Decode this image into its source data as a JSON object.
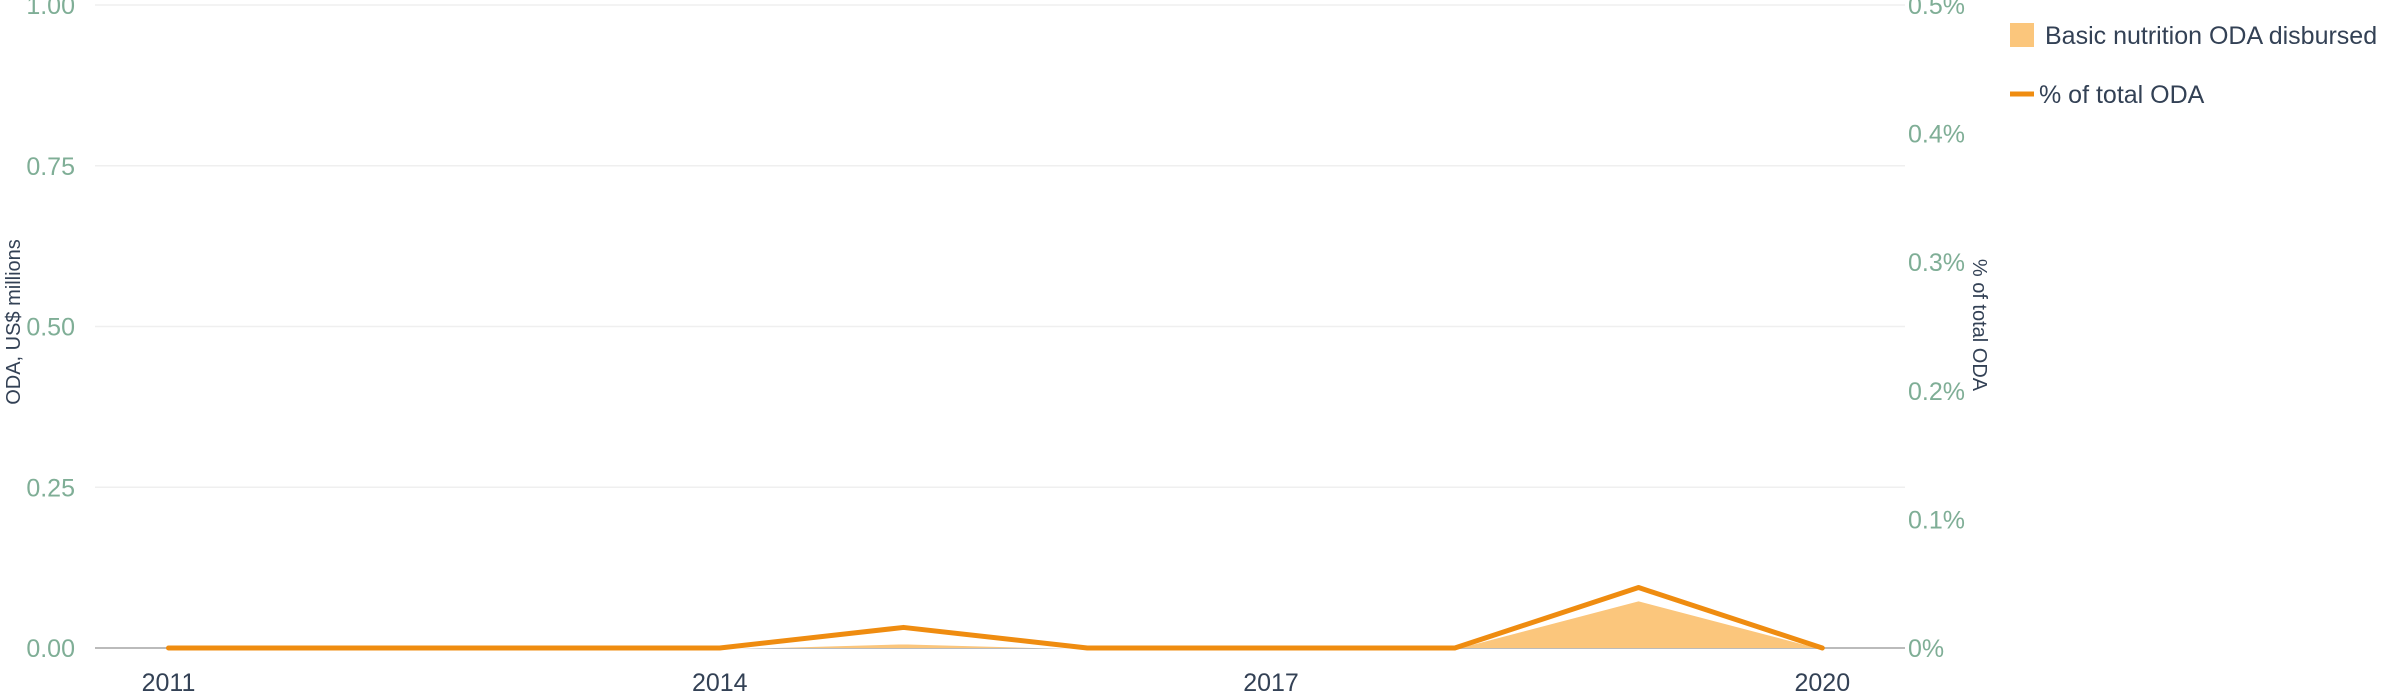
{
  "chart_data": {
    "type": "area",
    "x": [
      2011,
      2012,
      2013,
      2014,
      2015,
      2016,
      2017,
      2018,
      2019,
      2020
    ],
    "x_ticks": [
      "2011",
      "2014",
      "2017",
      "2020"
    ],
    "xlim": [
      2010.6,
      2020.45
    ],
    "y_left": {
      "label": "ODA, US$ millions",
      "range": [
        0,
        1
      ],
      "ticks": [
        "0.00",
        "0.25",
        "0.50",
        "0.75",
        "1.00"
      ]
    },
    "y_right": {
      "label": "% of total ODA",
      "range": [
        0,
        0.5
      ],
      "ticks": [
        "0%",
        "0.1%",
        "0.2%",
        "0.3%",
        "0.4%",
        "0.5%"
      ]
    },
    "grid": true,
    "legend_position": "top-right",
    "series": [
      {
        "name": "Basic nutrition ODA disbursed",
        "type": "area",
        "axis": "left",
        "values": [
          0,
          0,
          0,
          0,
          0.008,
          0,
          0,
          0,
          0.075,
          0
        ],
        "color": "#fbc67c"
      },
      {
        "name": "% of total ODA",
        "type": "line",
        "axis": "right",
        "values": [
          0,
          0,
          0,
          0,
          0.016,
          0,
          0,
          0,
          0.047,
          0
        ],
        "color": "#ef8c10"
      }
    ],
    "colors": {
      "left_tick": "#7fae96",
      "right_tick": "#7fae96",
      "grid": "#efefef",
      "baseline": "#bbbbbb"
    }
  }
}
